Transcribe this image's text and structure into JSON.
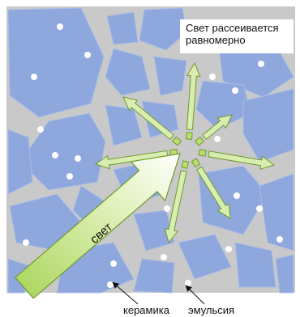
{
  "caption": [
    "Свет рассеивается",
    "равномерно"
  ],
  "arrow_label": "свет",
  "labels": [
    "керамика",
    "эмульсия"
  ]
}
